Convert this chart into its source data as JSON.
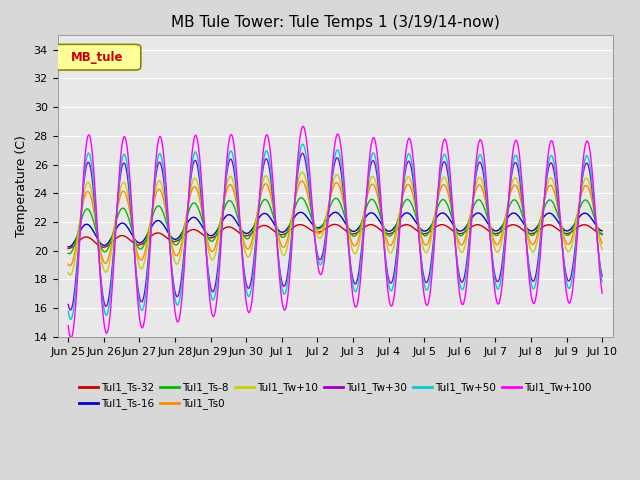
{
  "title": "MB Tule Tower: Tule Temps 1 (3/19/14-now)",
  "ylabel": "Temperature (C)",
  "ylim": [
    14,
    35
  ],
  "yticks": [
    14,
    16,
    18,
    20,
    22,
    24,
    26,
    28,
    30,
    32,
    34
  ],
  "xlabel_dates": [
    "Jun 25",
    "Jun 26",
    "Jun 27",
    "Jun 28",
    "Jun 29",
    "Jun 30",
    "Jul 1",
    "Jul 2",
    "Jul 3",
    "Jul 4",
    "Jul 5",
    "Jul 6",
    "Jul 7",
    "Jul 8",
    "Jul 9",
    "Jul 10"
  ],
  "bg_color": "#d8d8d8",
  "plot_bg_color": "#e8e8e8",
  "series": [
    {
      "label": "Tul1_Ts-32",
      "color": "#cc0000",
      "base": 21.0,
      "amp": 0.3,
      "phase": 0.0
    },
    {
      "label": "Tul1_Ts-16",
      "color": "#0000cc",
      "base": 21.5,
      "amp": 0.6,
      "phase": 0.1
    },
    {
      "label": "Tul1_Ts-8",
      "color": "#00bb00",
      "base": 21.8,
      "amp": 1.2,
      "phase": 0.2
    },
    {
      "label": "Tul1_Ts0",
      "color": "#ff8800",
      "base": 22.0,
      "amp": 2.0,
      "phase": 0.3
    },
    {
      "label": "Tul1_Tw+10",
      "color": "#cccc00",
      "base": 22.0,
      "amp": 2.5,
      "phase": 0.35
    },
    {
      "label": "Tul1_Tw+30",
      "color": "#9900cc",
      "base": 21.5,
      "amp": 4.0,
      "phase": 0.4
    },
    {
      "label": "Tul1_Tw+50",
      "color": "#00cccc",
      "base": 21.5,
      "amp": 4.5,
      "phase": 0.45
    },
    {
      "label": "Tul1_Tw+100",
      "color": "#ff00ff",
      "base": 21.5,
      "amp": 5.5,
      "phase": 0.5
    }
  ],
  "legend_box_color": "#ffff99",
  "legend_box_edge": "#888800",
  "legend_box_text": "MB_tule",
  "legend_box_text_color": "#cc0000"
}
